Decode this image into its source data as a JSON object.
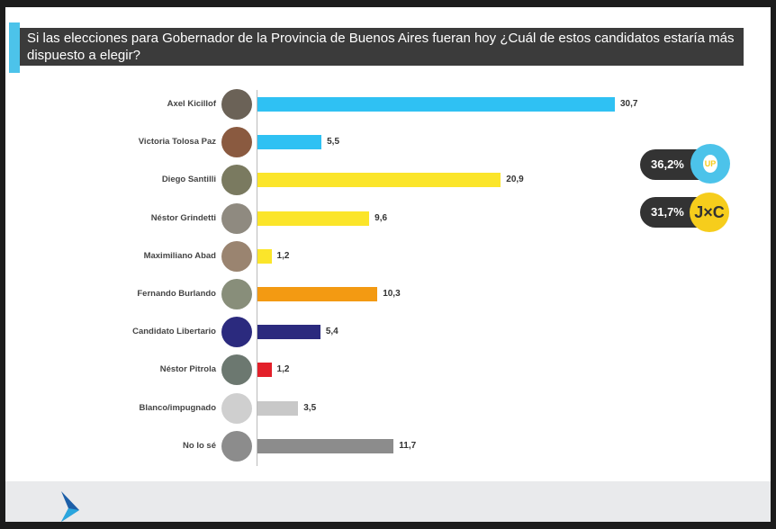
{
  "title": "Si las elecciones para Gobernador de la Provincia de Buenos Aires fueran hoy ¿Cuál de estos candidatos estaría más dispuesto a elegir?",
  "chart_data": {
    "type": "bar",
    "orientation": "horizontal",
    "title": "Si las elecciones para Gobernador de la Provincia de Buenos Aires fueran hoy ¿Cuál de estos candidatos estaría más dispuesto a elegir?",
    "categories": [
      "Axel Kicillof",
      "Victoria Tolosa Paz",
      "Diego Santilli",
      "Néstor Grindetti",
      "Maximiliano Abad",
      "Fernando Burlando",
      "Candidato Libertario",
      "Néstor Pitrola",
      "Blanco/impugnado",
      "No lo sé"
    ],
    "values": [
      30.7,
      5.5,
      20.9,
      9.6,
      1.2,
      10.3,
      5.4,
      1.2,
      3.5,
      11.7
    ],
    "value_labels": [
      "30,7",
      "5,5",
      "20,9",
      "9,6",
      "1,2",
      "10,3",
      "5,4",
      "1,2",
      "3,5",
      "11,7"
    ],
    "colors": [
      "#2fc1f3",
      "#2fc1f3",
      "#fbe52a",
      "#fbe52a",
      "#fbe52a",
      "#f39a12",
      "#2b2a7e",
      "#e3202a",
      "#c8c8c8",
      "#8c8c8c"
    ],
    "avatar_colors": [
      "#6b6257",
      "#8a5a40",
      "#7a7a60",
      "#8f8a80",
      "#9a8470",
      "#888e7a",
      "#2b2a7e",
      "#6c7870",
      "#cfcfcf",
      "#8c8c8c"
    ],
    "xlim": [
      0,
      31
    ]
  },
  "badges": [
    {
      "value": "36,2%",
      "logo": "UP",
      "color": "#4cc3ea"
    },
    {
      "value": "31,7%",
      "logo": "J×C",
      "color": "#f6cd1c"
    }
  ]
}
